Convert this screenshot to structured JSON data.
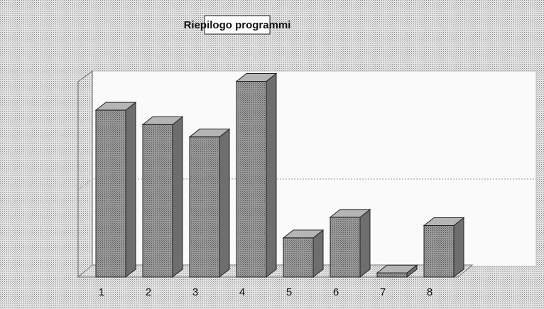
{
  "chart_data": {
    "type": "bar3d",
    "title": "Riepilogo programmi",
    "categories": [
      "1",
      "2",
      "3",
      "4",
      "5",
      "6",
      "7",
      "8"
    ],
    "values": [
      81,
      74,
      68,
      95,
      19,
      29,
      2,
      25
    ],
    "color": "#8c8c8c",
    "ylim": [
      0,
      100
    ]
  }
}
